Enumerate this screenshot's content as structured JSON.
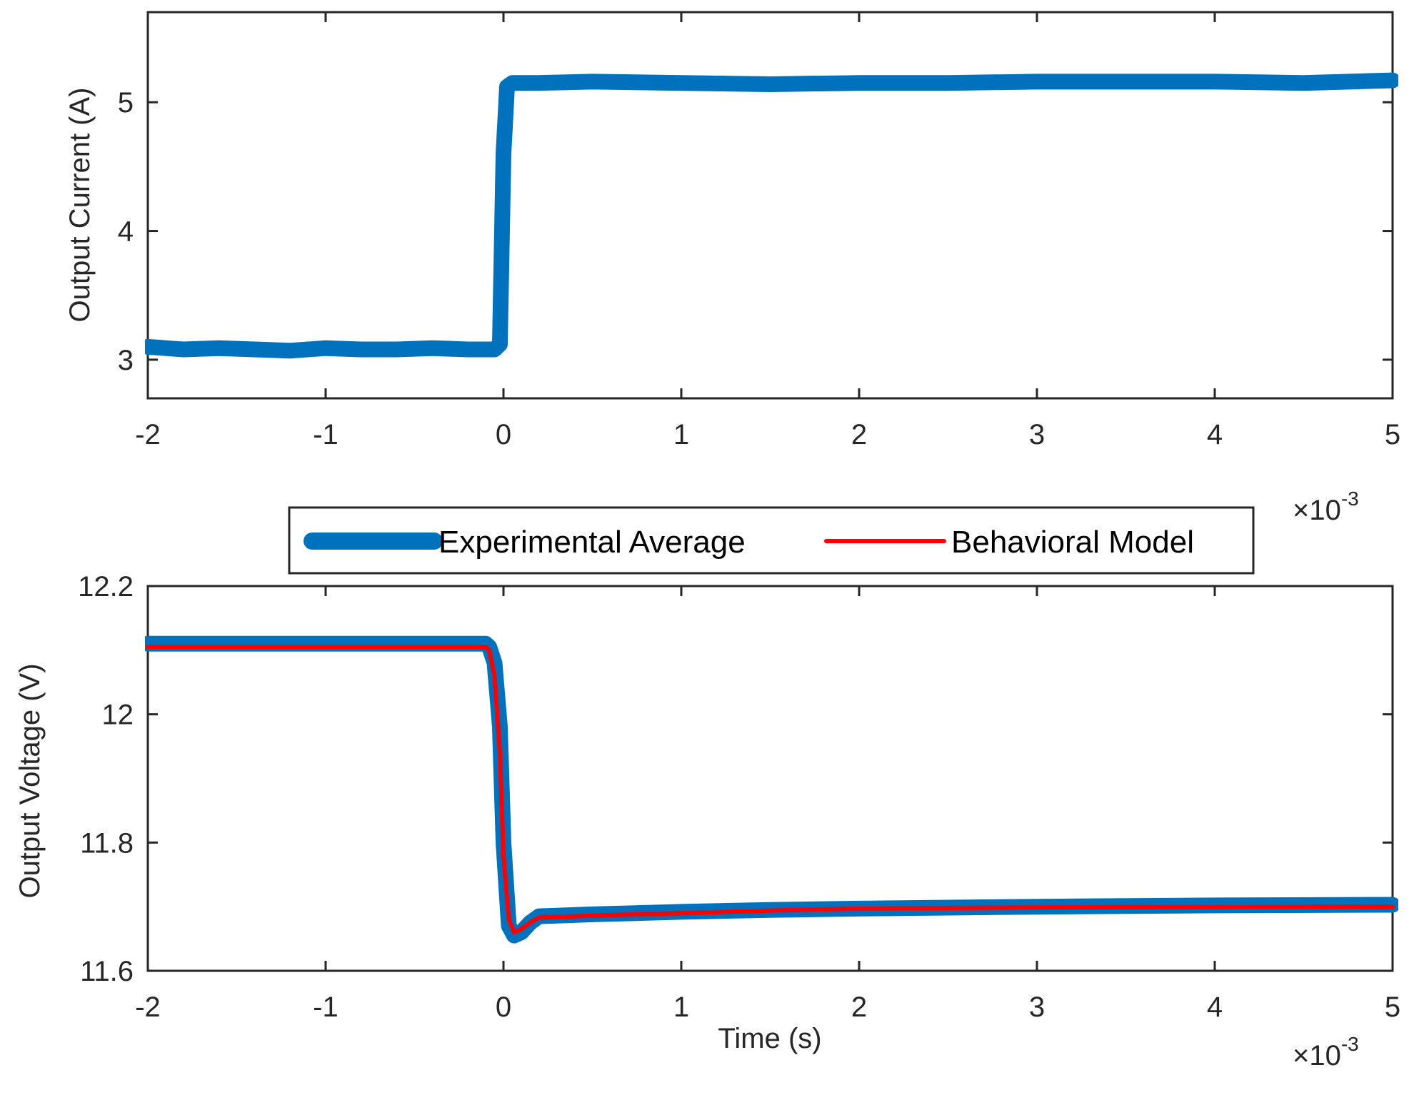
{
  "colors": {
    "experimental": "#0072BD",
    "model": "#FF0000",
    "axis": "#262626"
  },
  "chart_data": [
    {
      "type": "line",
      "xlabel": "",
      "ylabel": "Output Current (A)",
      "xlim": [
        -0.002,
        0.005
      ],
      "ylim": [
        2.7,
        5.7
      ],
      "xticks": [
        -2,
        -1,
        0,
        1,
        2,
        3,
        4,
        5
      ],
      "yticks": [
        3,
        4,
        5
      ],
      "x_exponent_label": "×10",
      "x_exponent_power": "-3",
      "series": [
        {
          "name": "Experimental Average",
          "x": [
            -0.002,
            -0.0018,
            -0.0016,
            -0.0014,
            -0.0012,
            -0.001,
            -0.0008,
            -0.0006,
            -0.0004,
            -0.0002,
            -5e-05,
            -2e-05,
            0.0,
            2e-05,
            5e-05,
            0.0002,
            0.0005,
            0.001,
            0.0015,
            0.002,
            0.0025,
            0.003,
            0.0035,
            0.004,
            0.0045,
            0.005
          ],
          "y": [
            3.1,
            3.08,
            3.09,
            3.08,
            3.07,
            3.09,
            3.08,
            3.08,
            3.09,
            3.08,
            3.08,
            3.12,
            4.6,
            5.12,
            5.15,
            5.15,
            5.16,
            5.15,
            5.14,
            5.15,
            5.15,
            5.16,
            5.16,
            5.16,
            5.15,
            5.17
          ]
        }
      ]
    },
    {
      "type": "line",
      "xlabel": "Time (s)",
      "ylabel": "Output Voltage (V)",
      "xlim": [
        -0.002,
        0.005
      ],
      "ylim": [
        11.6,
        12.2
      ],
      "xticks": [
        -2,
        -1,
        0,
        1,
        2,
        3,
        4,
        5
      ],
      "yticks": [
        11.6,
        11.8,
        12,
        12.2
      ],
      "ytick_labels": [
        "11.6",
        "11.8",
        "12",
        "12.2"
      ],
      "x_exponent_label": "×10",
      "x_exponent_power": "-3",
      "legend": {
        "position": "top-center-outside",
        "entries": [
          "Experimental Average",
          "Behavioral Model"
        ]
      },
      "series": [
        {
          "name": "Experimental Average",
          "x": [
            -0.002,
            -0.001,
            -0.0001,
            -8e-05,
            -5e-05,
            -2e-05,
            0.0,
            3e-05,
            6e-05,
            0.0001,
            0.00015,
            0.0002,
            0.0003,
            0.0005,
            0.001,
            0.0015,
            0.002,
            0.003,
            0.004,
            0.005
          ],
          "y": [
            12.11,
            12.11,
            12.11,
            12.105,
            12.08,
            11.98,
            11.8,
            11.67,
            11.655,
            11.66,
            11.675,
            11.685,
            11.686,
            11.688,
            11.692,
            11.695,
            11.697,
            11.7,
            11.702,
            11.703
          ]
        },
        {
          "name": "Behavioral Model",
          "x": [
            -0.002,
            -0.001,
            -0.0001,
            -8e-05,
            -5e-05,
            -2e-05,
            0.0,
            3e-05,
            6e-05,
            0.0001,
            0.00015,
            0.0002,
            0.0003,
            0.0005,
            0.001,
            0.0015,
            0.002,
            0.003,
            0.004,
            0.005
          ],
          "y": [
            12.105,
            12.105,
            12.105,
            12.1,
            12.06,
            11.94,
            11.78,
            11.68,
            11.66,
            11.665,
            11.675,
            11.683,
            11.684,
            11.686,
            11.69,
            11.694,
            11.697,
            11.699,
            11.7,
            11.7
          ]
        }
      ]
    }
  ]
}
